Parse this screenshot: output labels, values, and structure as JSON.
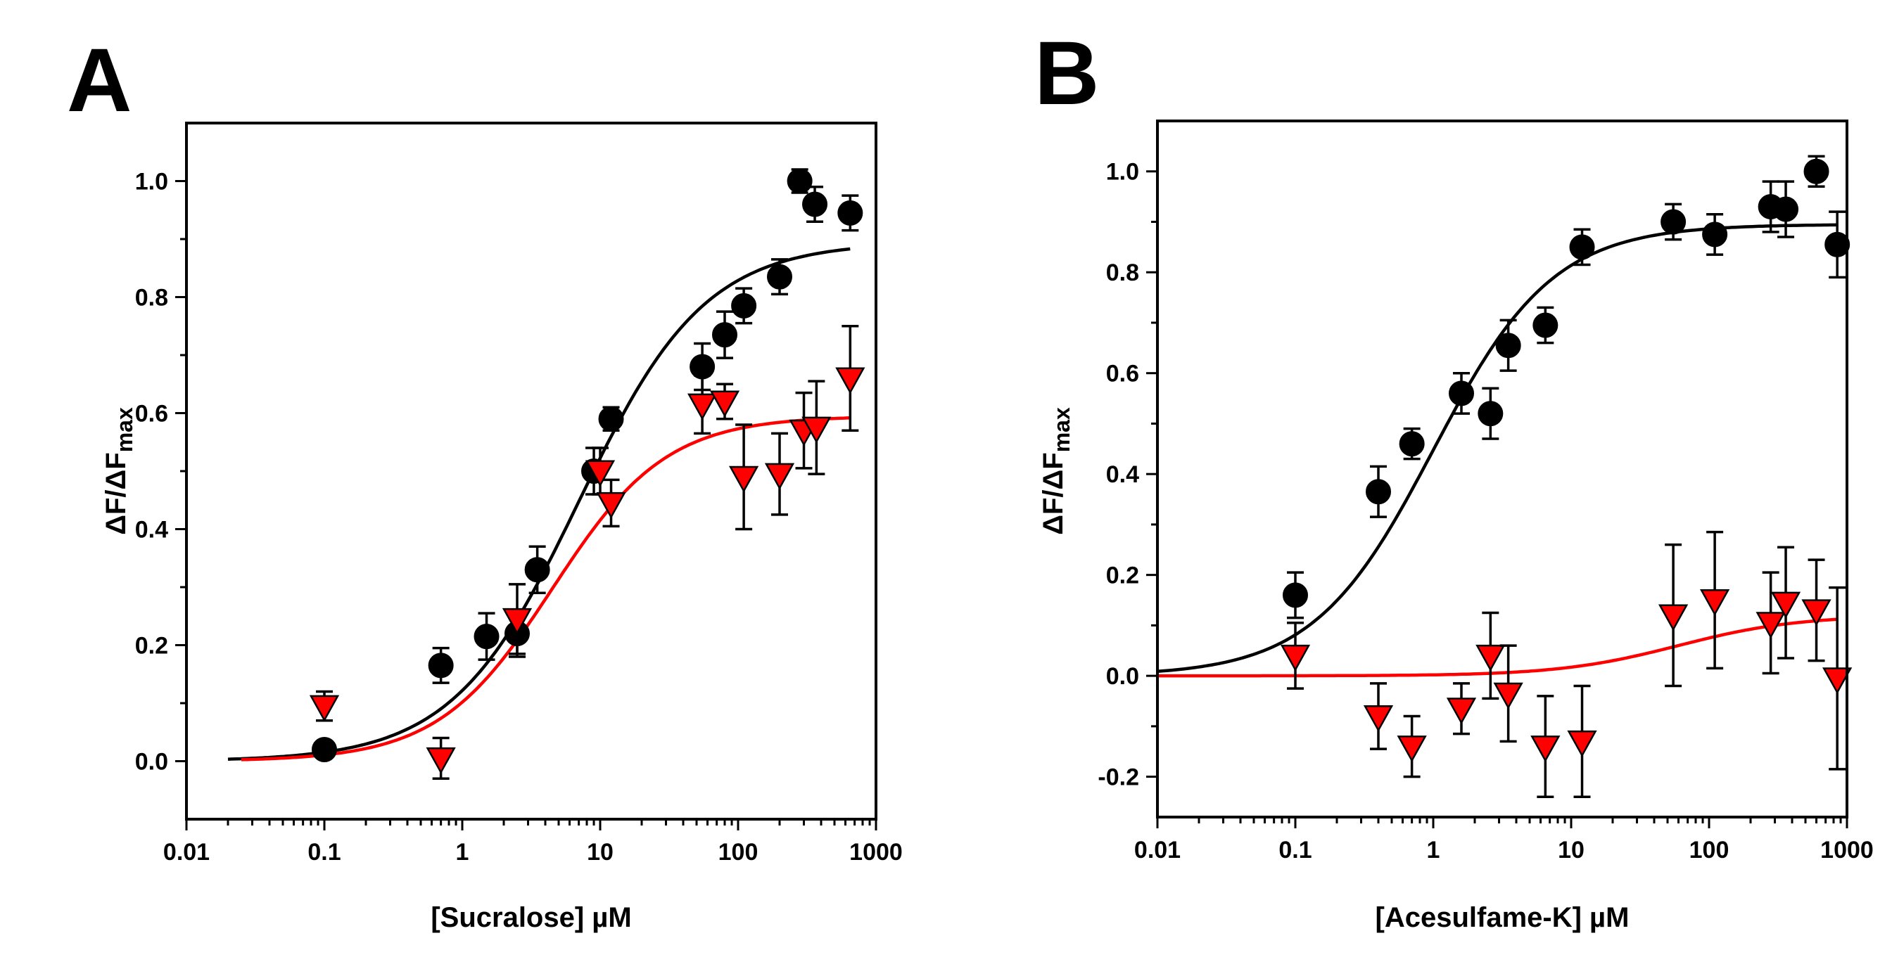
{
  "chart_data": [
    {
      "panel": "A",
      "type": "scatter",
      "title": "",
      "xlabel": "[Sucralose] µM",
      "ylabel_main": "ΔF/ΔF",
      "ylabel_sub": "max",
      "xscale": "log",
      "xlim": [
        0.01,
        1000
      ],
      "ylim": [
        -0.1,
        1.1
      ],
      "xticks": [
        0.01,
        0.1,
        1,
        10,
        100,
        1000
      ],
      "xtick_labels": [
        "0.01",
        "0.1",
        "1",
        "10",
        "100",
        "1000"
      ],
      "yticks": [
        0.0,
        0.2,
        0.4,
        0.6,
        0.8,
        1.0
      ],
      "ytick_labels": [
        "0.0",
        "0.2",
        "0.4",
        "0.6",
        "0.8",
        "1.0"
      ],
      "grid": false,
      "series": [
        {
          "marker": "circle",
          "color": "#000000",
          "points": [
            {
              "x": 0.1,
              "y": 0.02,
              "err": 0.01
            },
            {
              "x": 0.7,
              "y": 0.165,
              "err": 0.03
            },
            {
              "x": 1.5,
              "y": 0.215,
              "err": 0.04
            },
            {
              "x": 2.5,
              "y": 0.22,
              "err": 0.04
            },
            {
              "x": 3.5,
              "y": 0.33,
              "err": 0.04
            },
            {
              "x": 9,
              "y": 0.5,
              "err": 0.04
            },
            {
              "x": 12,
              "y": 0.59,
              "err": 0.02
            },
            {
              "x": 55,
              "y": 0.68,
              "err": 0.04
            },
            {
              "x": 80,
              "y": 0.735,
              "err": 0.04
            },
            {
              "x": 110,
              "y": 0.785,
              "err": 0.03
            },
            {
              "x": 200,
              "y": 0.835,
              "err": 0.03
            },
            {
              "x": 280,
              "y": 1.0,
              "err": 0.02
            },
            {
              "x": 360,
              "y": 0.96,
              "err": 0.03
            },
            {
              "x": 650,
              "y": 0.945,
              "err": 0.03
            }
          ],
          "fit": {
            "bottom": 0.0,
            "top": 0.895,
            "ec50": 7.0,
            "hill": 0.95,
            "x_range": [
              0.02,
              650
            ]
          }
        },
        {
          "marker": "triangle-down",
          "color": "#ff0000",
          "points": [
            {
              "x": 0.1,
              "y": 0.095,
              "err": 0.025
            },
            {
              "x": 0.7,
              "y": 0.005,
              "err": 0.035
            },
            {
              "x": 2.5,
              "y": 0.245,
              "err": 0.06
            },
            {
              "x": 10,
              "y": 0.5,
              "err": 0.04
            },
            {
              "x": 12,
              "y": 0.445,
              "err": 0.04
            },
            {
              "x": 55,
              "y": 0.615,
              "err": 0.05
            },
            {
              "x": 80,
              "y": 0.62,
              "err": 0.03
            },
            {
              "x": 110,
              "y": 0.49,
              "err": 0.09
            },
            {
              "x": 200,
              "y": 0.495,
              "err": 0.07
            },
            {
              "x": 300,
              "y": 0.57,
              "err": 0.065
            },
            {
              "x": 370,
              "y": 0.575,
              "err": 0.08
            },
            {
              "x": 650,
              "y": 0.66,
              "err": 0.09
            }
          ],
          "fit": {
            "bottom": 0.0,
            "top": 0.595,
            "ec50": 4.5,
            "hill": 1.05,
            "x_range": [
              0.025,
              650
            ]
          }
        }
      ]
    },
    {
      "panel": "B",
      "type": "scatter",
      "title": "",
      "xlabel": "[Acesulfame-K] µM",
      "ylabel_main": "ΔF/ΔF",
      "ylabel_sub": "max",
      "xscale": "log",
      "xlim": [
        0.01,
        1000
      ],
      "ylim": [
        -0.28,
        1.1
      ],
      "xticks": [
        0.01,
        0.1,
        1,
        10,
        100,
        1000
      ],
      "xtick_labels": [
        "0.01",
        "0.1",
        "1",
        "10",
        "100",
        "1000"
      ],
      "yticks": [
        -0.2,
        0.0,
        0.2,
        0.4,
        0.6,
        0.8,
        1.0
      ],
      "ytick_labels": [
        "-0.2",
        "0.0",
        "0.2",
        "0.4",
        "0.6",
        "0.8",
        "1.0"
      ],
      "grid": false,
      "series": [
        {
          "marker": "circle",
          "color": "#000000",
          "points": [
            {
              "x": 0.1,
              "y": 0.16,
              "err": 0.045
            },
            {
              "x": 0.4,
              "y": 0.365,
              "err": 0.05
            },
            {
              "x": 0.7,
              "y": 0.46,
              "err": 0.03
            },
            {
              "x": 1.6,
              "y": 0.56,
              "err": 0.04
            },
            {
              "x": 2.6,
              "y": 0.52,
              "err": 0.05
            },
            {
              "x": 3.5,
              "y": 0.655,
              "err": 0.05
            },
            {
              "x": 6.5,
              "y": 0.695,
              "err": 0.035
            },
            {
              "x": 12,
              "y": 0.85,
              "err": 0.035
            },
            {
              "x": 55,
              "y": 0.9,
              "err": 0.035
            },
            {
              "x": 110,
              "y": 0.875,
              "err": 0.04
            },
            {
              "x": 280,
              "y": 0.93,
              "err": 0.05
            },
            {
              "x": 360,
              "y": 0.925,
              "err": 0.055
            },
            {
              "x": 600,
              "y": 1.0,
              "err": 0.03
            },
            {
              "x": 850,
              "y": 0.855,
              "err": 0.065
            }
          ],
          "fit": {
            "bottom": 0.0,
            "top": 0.895,
            "ec50": 1.0,
            "hill": 1.0,
            "x_range": [
              0.01,
              850
            ]
          }
        },
        {
          "marker": "triangle-down",
          "color": "#ff0000",
          "points": [
            {
              "x": 0.1,
              "y": 0.04,
              "err": 0.065
            },
            {
              "x": 0.4,
              "y": -0.08,
              "err": 0.065
            },
            {
              "x": 0.7,
              "y": -0.14,
              "err": 0.06
            },
            {
              "x": 1.6,
              "y": -0.065,
              "err": 0.05
            },
            {
              "x": 2.6,
              "y": 0.04,
              "err": 0.085
            },
            {
              "x": 3.5,
              "y": -0.035,
              "err": 0.095
            },
            {
              "x": 6.5,
              "y": -0.14,
              "err": 0.1
            },
            {
              "x": 12,
              "y": -0.13,
              "err": 0.11
            },
            {
              "x": 55,
              "y": 0.12,
              "err": 0.14
            },
            {
              "x": 110,
              "y": 0.15,
              "err": 0.135
            },
            {
              "x": 280,
              "y": 0.105,
              "err": 0.1
            },
            {
              "x": 360,
              "y": 0.145,
              "err": 0.11
            },
            {
              "x": 600,
              "y": 0.13,
              "err": 0.1
            },
            {
              "x": 850,
              "y": -0.005,
              "err": 0.18
            }
          ],
          "fit": {
            "bottom": 0.0,
            "top": 0.12,
            "ec50": 60,
            "hill": 1.0,
            "x_range": [
              0.01,
              850
            ]
          }
        }
      ]
    }
  ]
}
